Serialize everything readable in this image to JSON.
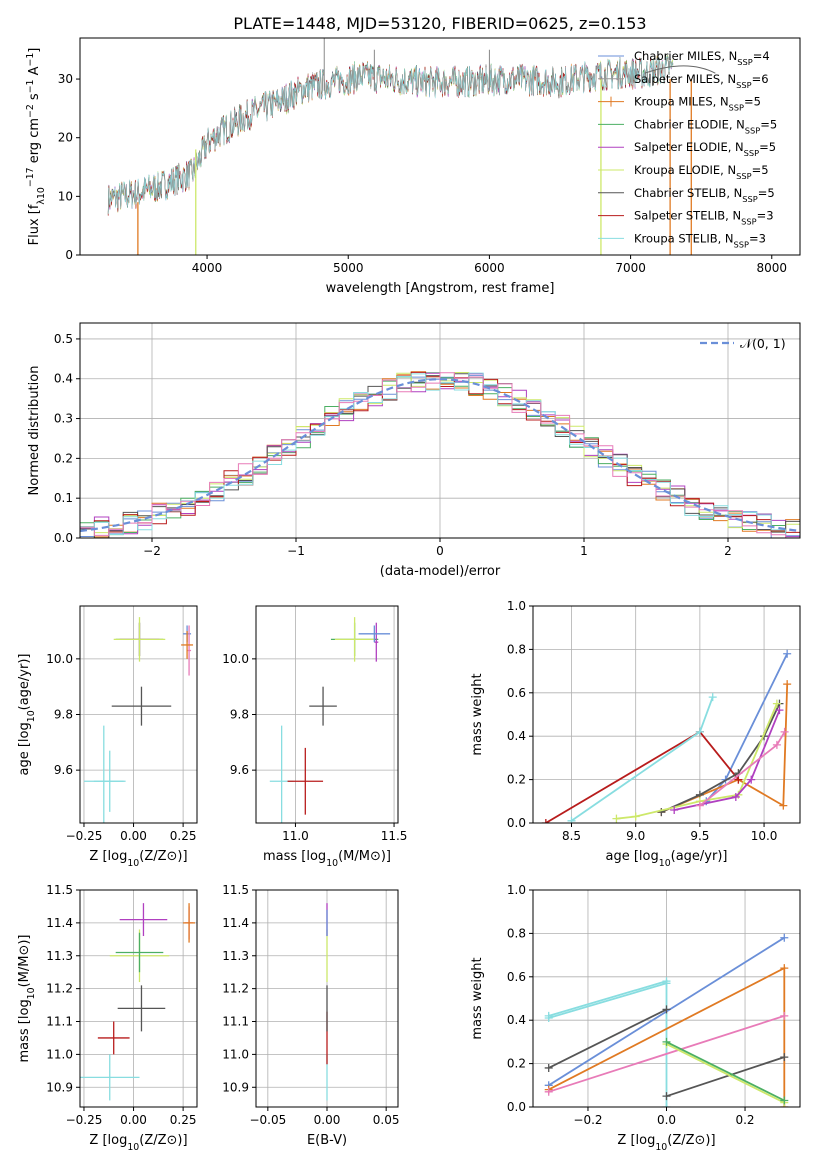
{
  "figure_title": "PLATE=1448, MJD=53120, FIBERID=0625, z=0.153",
  "series_colors": {
    "chabrier_miles": "#6a8fd8",
    "salpeter_miles": "#999999",
    "kroupa_miles": "#e07a23",
    "chabrier_elodie": "#4caf63",
    "salpeter_elodie": "#b040c0",
    "kroupa_elodie": "#cde86a",
    "chabrier_stelib": "#555555",
    "salpeter_stelib": "#b81c1c",
    "kroupa_stelib": "#88dde0",
    "pink": "#e87bb8"
  },
  "chart_data": [
    {
      "id": "spectrum",
      "type": "line",
      "xlabel": "wavelength [Angstrom, rest frame]",
      "ylabel": "Flux [f_λ10^−17 erg cm^−2 s^−1 A^−1]",
      "xlim": [
        3100,
        8200
      ],
      "ylim": [
        0,
        37
      ],
      "xticks": [
        4000,
        5000,
        6000,
        7000,
        8000
      ],
      "yticks": [
        0,
        10,
        20,
        30
      ],
      "grid": false,
      "legend_position": "top-right",
      "legend": [
        "Chabrier MILES, N_SSP=4",
        "Salpeter MILES, N_SSP=6",
        "Kroupa MILES, N_SSP=5",
        "Chabrier ELODIE, N_SSP=5",
        "Salpeter ELODIE, N_SSP=5",
        "Kroupa ELODIE, N_SSP=5",
        "Chabrier STELIB, N_SSP=5",
        "Salpeter STELIB, N_SSP=3",
        "Kroupa STELIB, N_SSP=3"
      ],
      "continuum_x": [
        3300,
        3500,
        3700,
        3900,
        4000,
        4100,
        4300,
        4500,
        4700,
        4900,
        5100,
        5300,
        5500,
        5700,
        5900,
        6100,
        6300,
        6500,
        6700,
        6900,
        7100,
        7300
      ],
      "continuum_y": [
        9.5,
        10.5,
        12,
        14,
        19,
        21,
        24,
        26,
        28.5,
        29.5,
        30.5,
        30,
        29.5,
        29.5,
        29.5,
        30,
        29.8,
        29.5,
        30.5,
        31,
        31,
        32
      ]
    },
    {
      "id": "residuals",
      "type": "histogram",
      "xlabel": "(data-model)/error",
      "ylabel": "Normed distribution",
      "xlim": [
        -2.5,
        2.5
      ],
      "ylim": [
        0,
        0.54
      ],
      "xticks": [
        -2,
        -1,
        0,
        1,
        2
      ],
      "yticks": [
        0.0,
        0.1,
        0.2,
        0.3,
        0.4,
        0.5
      ],
      "grid": true,
      "legend_position": "top-right",
      "legend": [
        "𝒩(0, 1)"
      ],
      "bin_width": 0.1
    },
    {
      "id": "age_vs_Z",
      "type": "errorbar",
      "xlabel": "Z [log10(Z/Z⊙)]",
      "ylabel": "age  [log10(age/yr)]",
      "xlim": [
        -0.27,
        0.32
      ],
      "ylim": [
        9.41,
        10.19
      ],
      "xticks": [
        -0.25,
        0.0,
        0.25
      ],
      "yticks": [
        9.6,
        9.8,
        10.0
      ],
      "grid": true,
      "points": [
        {
          "s": "kroupa_stelib",
          "x": -0.15,
          "y": 9.56,
          "xerr": 0.1,
          "yerr": 0.2
        },
        {
          "s": "kroupa_stelib",
          "x": -0.12,
          "y": 9.56,
          "xerr": 0.08,
          "yerr": 0.11
        },
        {
          "s": "chabrier_stelib",
          "x": 0.04,
          "y": 9.83,
          "xerr": 0.15,
          "yerr": 0.07
        },
        {
          "s": "chabrier_elodie",
          "x": 0.03,
          "y": 10.07,
          "xerr": 0.12,
          "yerr": 0.06
        },
        {
          "s": "salpeter_elodie",
          "x": 0.03,
          "y": 10.07,
          "xerr": 0.1,
          "yerr": 0.06
        },
        {
          "s": "kroupa_elodie",
          "x": 0.03,
          "y": 10.07,
          "xerr": 0.13,
          "yerr": 0.08
        },
        {
          "s": "chabrier_miles",
          "x": 0.27,
          "y": 10.09,
          "xerr": 0.02,
          "yerr": 0.03
        },
        {
          "s": "pink",
          "x": 0.28,
          "y": 10.03,
          "xerr": 0.01,
          "yerr": 0.09
        },
        {
          "s": "kroupa_miles",
          "x": 0.27,
          "y": 10.05,
          "xerr": 0.03,
          "yerr": 0.05
        }
      ]
    },
    {
      "id": "age_vs_mass",
      "type": "errorbar",
      "xlabel": "mass [log10(M/M⊙)]",
      "ylabel": "",
      "xlim": [
        10.8,
        11.52
      ],
      "ylim": [
        9.41,
        10.19
      ],
      "xticks": [
        11.0,
        11.5
      ],
      "yticks": [
        9.6,
        9.8,
        10.0
      ],
      "grid": true,
      "points": [
        {
          "s": "kroupa_stelib",
          "x": 10.93,
          "y": 9.56,
          "xerr": 0.06,
          "yerr": 0.2
        },
        {
          "s": "salpeter_stelib",
          "x": 11.05,
          "y": 9.56,
          "xerr": 0.09,
          "yerr": 0.12
        },
        {
          "s": "chabrier_stelib",
          "x": 11.14,
          "y": 9.83,
          "xerr": 0.07,
          "yerr": 0.07
        },
        {
          "s": "chabrier_elodie",
          "x": 11.3,
          "y": 10.07,
          "xerr": 0.12,
          "yerr": 0.06
        },
        {
          "s": "kroupa_elodie",
          "x": 11.3,
          "y": 10.07,
          "xerr": 0.1,
          "yerr": 0.08
        },
        {
          "s": "salpeter_elodie",
          "x": 11.41,
          "y": 10.06,
          "xerr": 0.01,
          "yerr": 0.07
        },
        {
          "s": "chabrier_miles",
          "x": 11.4,
          "y": 10.09,
          "xerr": 0.08,
          "yerr": 0.03
        }
      ]
    },
    {
      "id": "weight_vs_age",
      "type": "line",
      "xlabel": "age  [log10(age/yr)]",
      "ylabel": "mass weight",
      "xlim": [
        8.2,
        10.28
      ],
      "ylim": [
        0,
        1.0
      ],
      "xticks": [
        8.5,
        9.0,
        9.5,
        10.0
      ],
      "yticks": [
        0.0,
        0.2,
        0.4,
        0.6,
        0.8,
        1.0
      ],
      "grid": true,
      "series": [
        {
          "s": "chabrier_miles",
          "x": [
            9.55,
            9.7,
            10.18
          ],
          "y": [
            0.1,
            0.2,
            0.78
          ]
        },
        {
          "s": "kroupa_miles",
          "x": [
            9.2,
            9.8,
            10.15,
            10.18
          ],
          "y": [
            0.05,
            0.2,
            0.08,
            0.64
          ]
        },
        {
          "s": "salpeter_stelib",
          "x": [
            8.3,
            9.5,
            9.8
          ],
          "y": [
            0.0,
            0.42,
            0.2
          ]
        },
        {
          "s": "kroupa_stelib",
          "x": [
            8.5,
            9.5,
            9.6
          ],
          "y": [
            0.01,
            0.42,
            0.58
          ]
        },
        {
          "s": "chabrier_stelib",
          "x": [
            9.2,
            9.5,
            9.8,
            10.0,
            10.12
          ],
          "y": [
            0.05,
            0.13,
            0.23,
            0.4,
            0.55
          ]
        },
        {
          "s": "kroupa_elodie",
          "x": [
            8.85,
            9.0,
            9.5,
            9.8,
            10.1
          ],
          "y": [
            0.02,
            0.03,
            0.1,
            0.13,
            0.55
          ]
        },
        {
          "s": "salpeter_elodie",
          "x": [
            9.3,
            9.78,
            9.9,
            10.12
          ],
          "y": [
            0.06,
            0.12,
            0.2,
            0.52
          ]
        },
        {
          "s": "pink",
          "x": [
            9.5,
            10.1,
            10.16
          ],
          "y": [
            0.08,
            0.36,
            0.42
          ]
        }
      ]
    },
    {
      "id": "mass_vs_Z",
      "type": "errorbar",
      "xlabel": "Z [log10(Z/Z⊙)]",
      "ylabel": "mass [log10(M/M⊙)]",
      "xlim": [
        -0.27,
        0.32
      ],
      "ylim": [
        10.84,
        11.5
      ],
      "xticks": [
        -0.25,
        0.0,
        0.25
      ],
      "yticks": [
        10.9,
        11.0,
        11.1,
        11.2,
        11.3,
        11.4,
        11.5
      ],
      "grid": true,
      "points": [
        {
          "s": "kroupa_stelib",
          "x": -0.12,
          "y": 10.93,
          "xerr": 0.15,
          "yerr": 0.07
        },
        {
          "s": "salpeter_stelib",
          "x": -0.1,
          "y": 11.05,
          "xerr": 0.08,
          "yerr": 0.05
        },
        {
          "s": "chabrier_stelib",
          "x": 0.04,
          "y": 11.14,
          "xerr": 0.12,
          "yerr": 0.07
        },
        {
          "s": "kroupa_elodie",
          "x": 0.03,
          "y": 11.3,
          "xerr": 0.15,
          "yerr": 0.08
        },
        {
          "s": "chabrier_elodie",
          "x": 0.03,
          "y": 11.31,
          "xerr": 0.12,
          "yerr": 0.06
        },
        {
          "s": "salpeter_elodie",
          "x": 0.05,
          "y": 11.41,
          "xerr": 0.12,
          "yerr": 0.05
        },
        {
          "s": "pink",
          "x": 0.28,
          "y": 11.4,
          "xerr": 0.02,
          "yerr": 0.05
        },
        {
          "s": "kroupa_miles",
          "x": 0.28,
          "y": 11.4,
          "xerr": 0.03,
          "yerr": 0.06
        }
      ]
    },
    {
      "id": "mass_vs_ebv",
      "type": "errorbar",
      "xlabel": "E(B-V)",
      "ylabel": "",
      "xlim": [
        -0.06,
        0.06
      ],
      "ylim": [
        10.84,
        11.5
      ],
      "xticks": [
        -0.05,
        0.0,
        0.05
      ],
      "xtick_labels": [
        "−0.05",
        "0.00",
        "0.05"
      ],
      "yticks": [
        10.9,
        11.0,
        11.1,
        11.2,
        11.3,
        11.4,
        11.5
      ],
      "grid": true,
      "points": [
        {
          "s": "kroupa_stelib",
          "x": 0.0,
          "y": 10.93,
          "xerr": 0.0,
          "yerr": 0.07
        },
        {
          "s": "salpeter_stelib",
          "x": 0.0,
          "y": 11.05,
          "xerr": 0.0,
          "yerr": 0.08
        },
        {
          "s": "chabrier_stelib",
          "x": 0.0,
          "y": 11.14,
          "xerr": 0.0,
          "yerr": 0.07
        },
        {
          "s": "kroupa_elodie",
          "x": 0.0,
          "y": 11.3,
          "xerr": 0.0,
          "yerr": 0.08
        },
        {
          "s": "salpeter_elodie",
          "x": 0.0,
          "y": 11.41,
          "xerr": 0.0,
          "yerr": 0.05
        },
        {
          "s": "chabrier_miles",
          "x": 0.0,
          "y": 11.4,
          "xerr": 0.0,
          "yerr": 0.04
        }
      ]
    },
    {
      "id": "weight_vs_Z",
      "type": "line",
      "xlabel": "Z [log10(Z/Z⊙)]",
      "ylabel": "mass weight",
      "xlim": [
        -0.34,
        0.34
      ],
      "ylim": [
        0,
        1.0
      ],
      "xticks": [
        -0.2,
        0.0,
        0.2
      ],
      "xtick_labels": [
        "−0.2",
        "0.0",
        "0.2"
      ],
      "yticks": [
        0.0,
        0.2,
        0.4,
        0.6,
        0.8,
        1.0
      ],
      "grid": true,
      "series": [
        {
          "s": "kroupa_stelib",
          "x": [
            -0.3,
            0.0,
            0.0
          ],
          "y": [
            0.42,
            0.58,
            0.0
          ]
        },
        {
          "s": "kroupa_stelib",
          "x": [
            -0.3,
            0.0
          ],
          "y": [
            0.41,
            0.57
          ]
        },
        {
          "s": "chabrier_miles",
          "x": [
            -0.3,
            0.3
          ],
          "y": [
            0.1,
            0.78
          ]
        },
        {
          "s": "kroupa_miles",
          "x": [
            -0.3,
            0.3,
            0.3
          ],
          "y": [
            0.08,
            0.64,
            0.0
          ]
        },
        {
          "s": "chabrier_stelib",
          "x": [
            -0.3,
            0.0
          ],
          "y": [
            0.18,
            0.45
          ]
        },
        {
          "s": "chabrier_stelib",
          "x": [
            0.0,
            0.3
          ],
          "y": [
            0.05,
            0.23
          ]
        },
        {
          "s": "pink",
          "x": [
            -0.3,
            0.3
          ],
          "y": [
            0.07,
            0.42
          ]
        },
        {
          "s": "kroupa_elodie",
          "x": [
            0.0,
            0.3
          ],
          "y": [
            0.29,
            0.02
          ]
        },
        {
          "s": "chabrier_elodie",
          "x": [
            0.0,
            0.3
          ],
          "y": [
            0.3,
            0.03
          ]
        }
      ]
    }
  ]
}
